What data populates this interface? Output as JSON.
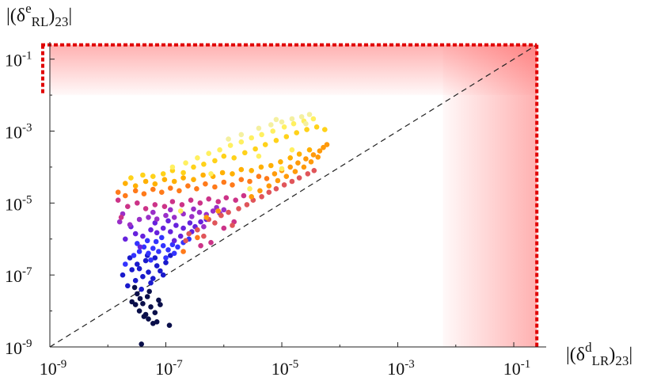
{
  "chart_data": {
    "type": "scatter",
    "title": "",
    "xlabel": "|(δ^d_LR)_23|",
    "ylabel": "|(δ^e_RL)_23|",
    "xscale": "log",
    "yscale": "log",
    "xlim": [
      1e-09,
      0.3
    ],
    "ylim": [
      1e-09,
      0.3
    ],
    "x_ticks": [
      {
        "value": 1e-09,
        "base": "10",
        "exp": "-9"
      },
      {
        "value": 1e-07,
        "base": "10",
        "exp": "-7"
      },
      {
        "value": 1e-05,
        "base": "10",
        "exp": "-5"
      },
      {
        "value": 0.001,
        "base": "10",
        "exp": "-3"
      },
      {
        "value": 0.1,
        "base": "10",
        "exp": "-1"
      }
    ],
    "y_ticks": [
      {
        "value": 1e-09,
        "base": "10",
        "exp": "-9"
      },
      {
        "value": 1e-07,
        "base": "10",
        "exp": "-7"
      },
      {
        "value": 1e-05,
        "base": "10",
        "exp": "-5"
      },
      {
        "value": 0.001,
        "base": "10",
        "exp": "-3"
      },
      {
        "value": 0.1,
        "base": "10",
        "exp": "-1"
      }
    ],
    "reference_line": {
      "style": "dashed",
      "color": "#222222",
      "points": [
        [
          1e-09,
          1e-09
        ],
        [
          0.25,
          0.25
        ]
      ]
    },
    "excluded_regions": [
      {
        "color": "#ff3b3b",
        "x": [
          1e-09,
          0.25
        ],
        "y": [
          0.01,
          0.25
        ]
      },
      {
        "color": "#ff3b3b",
        "x": [
          0.006,
          0.25
        ],
        "y": [
          1e-09,
          0.25
        ]
      }
    ],
    "exclusion_boundary": {
      "color": "#e00000",
      "style": "dotted",
      "x_max": 0.25,
      "y_max": 0.25
    },
    "colors": [
      "#0a0f4a",
      "#1a1acc",
      "#3333ff",
      "#6622dd",
      "#9a2fc8",
      "#cc3388",
      "#e0555a",
      "#ff7a1a",
      "#ff9a0a",
      "#ffb000",
      "#ffd21a",
      "#fff060",
      "#f4f0a0"
    ],
    "series": [
      {
        "color": "#0a0f4a",
        "points": [
          [
            3e-08,
            1.5e-08
          ],
          [
            3.5e-08,
            1e-08
          ],
          [
            3.8e-08,
            1.2e-09
          ],
          [
            4.5e-08,
            8e-09
          ],
          [
            5.5e-08,
            1.3e-08
          ],
          [
            6e-08,
            4.5e-09
          ],
          [
            2.6e-08,
            1.8e-08
          ],
          [
            7e-08,
            5e-09
          ],
          [
            4e-08,
            1.6e-08
          ],
          [
            1.15e-07,
            4e-09
          ],
          [
            5e-08,
            6e-09
          ],
          [
            3.2e-08,
            3e-08
          ],
          [
            4.8e-08,
            2.5e-08
          ],
          [
            6.5e-08,
            9e-09
          ],
          [
            3.6e-08,
            2.2e-08
          ],
          [
            5.2e-08,
            3.5e-08
          ],
          [
            7.5e-08,
            2e-08
          ],
          [
            2.9e-08,
            4.5e-08
          ],
          [
            4.2e-08,
            7e-09
          ],
          [
            8e-08,
            1.5e-08
          ]
        ]
      },
      {
        "color": "#1a1acc",
        "points": [
          [
            1.8e-08,
            1e-07
          ],
          [
            2.2e-08,
            5e-08
          ],
          [
            3e-08,
            7e-08
          ],
          [
            3.5e-08,
            1.5e-07
          ],
          [
            4e-08,
            9e-08
          ],
          [
            5e-08,
            1.2e-07
          ],
          [
            6e-08,
            8e-08
          ],
          [
            7e-08,
            1.8e-07
          ],
          [
            4.5e-08,
            2.5e-07
          ],
          [
            3.2e-08,
            2e-07
          ],
          [
            5.5e-08,
            6e-08
          ],
          [
            8e-08,
            1.3e-07
          ],
          [
            2.6e-08,
            1.4e-07
          ],
          [
            6.5e-08,
            3e-07
          ],
          [
            1e-07,
            2.2e-07
          ],
          [
            9e-08,
            1e-07
          ],
          [
            3.8e-08,
            4e-08
          ],
          [
            4.8e-08,
            3.5e-07
          ],
          [
            2.4e-08,
            3e-07
          ],
          [
            1.2e-07,
            3.5e-07
          ]
        ]
      },
      {
        "color": "#3333ff",
        "points": [
          [
            2e-08,
            2e-07
          ],
          [
            2.8e-08,
            3.5e-07
          ],
          [
            3.5e-08,
            4.5e-07
          ],
          [
            4.2e-08,
            6e-07
          ],
          [
            5e-08,
            4e-07
          ],
          [
            6e-08,
            5.5e-07
          ],
          [
            7.5e-08,
            4.5e-07
          ],
          [
            9e-08,
            6.5e-07
          ],
          [
            1.1e-07,
            5e-07
          ],
          [
            1.3e-07,
            7e-07
          ],
          [
            1.6e-07,
            6e-07
          ],
          [
            2e-07,
            8e-07
          ],
          [
            3.2e-08,
            7.5e-07
          ],
          [
            4.8e-08,
            9e-07
          ],
          [
            6.8e-08,
            8.5e-07
          ],
          [
            8.5e-08,
            1.1e-06
          ],
          [
            1e-07,
            3e-07
          ],
          [
            1.4e-07,
            4e-07
          ],
          [
            5.5e-08,
            2.6e-07
          ],
          [
            2.5e-07,
            1e-06
          ]
        ]
      },
      {
        "color": "#6622dd",
        "points": [
          [
            2e-08,
            1e-06
          ],
          [
            3e-08,
            1.4e-06
          ],
          [
            4e-08,
            1.2e-06
          ],
          [
            5.5e-08,
            1.8e-06
          ],
          [
            7e-08,
            1.5e-06
          ],
          [
            9e-08,
            2e-06
          ],
          [
            1.2e-07,
            1.6e-06
          ],
          [
            1.5e-07,
            2.4e-06
          ],
          [
            2e-07,
            2e-06
          ],
          [
            2.6e-07,
            2.8e-06
          ],
          [
            3.2e-07,
            2.2e-06
          ],
          [
            4e-07,
            3e-06
          ],
          [
            2.5e-08,
            2.2e-06
          ],
          [
            1.8e-07,
            1.2e-06
          ],
          [
            6.5e-08,
            2.8e-06
          ],
          [
            1.1e-07,
            3.2e-06
          ],
          [
            2.8e-07,
            1.6e-06
          ],
          [
            3.6e-08,
            6e-07
          ],
          [
            5e-07,
            3.5e-06
          ],
          [
            1.4e-07,
            9e-07
          ]
        ]
      },
      {
        "color": "#9a2fc8",
        "points": [
          [
            1.6e-08,
            3e-06
          ],
          [
            2.4e-08,
            2.5e-06
          ],
          [
            3.5e-08,
            3.5e-06
          ],
          [
            5e-08,
            4e-06
          ],
          [
            7e-08,
            3.6e-06
          ],
          [
            1e-07,
            4.5e-06
          ],
          [
            1.4e-07,
            4e-06
          ],
          [
            2e-07,
            5e-06
          ],
          [
            2.8e-07,
            4.2e-06
          ],
          [
            3.8e-07,
            5.5e-06
          ],
          [
            5e-07,
            4.8e-06
          ],
          [
            6.5e-07,
            6e-06
          ],
          [
            8.5e-07,
            5.2e-06
          ],
          [
            4.5e-07,
            2.2e-06
          ],
          [
            6e-08,
            5.5e-06
          ],
          [
            1.2e-07,
            6.5e-06
          ],
          [
            1.8e-08,
            5e-06
          ],
          [
            3e-07,
            6.8e-06
          ],
          [
            7.5e-07,
            7.5e-06
          ],
          [
            1e-06,
            6.5e-06
          ]
        ]
      },
      {
        "color": "#cc3388",
        "points": [
          [
            1.5e-08,
            1.2e-05
          ],
          [
            2.2e-08,
            8e-06
          ],
          [
            3.2e-08,
            1e-05
          ],
          [
            4.5e-08,
            7e-06
          ],
          [
            6.5e-08,
            9e-06
          ],
          [
            9.5e-08,
            8e-06
          ],
          [
            1.3e-07,
            1.1e-05
          ],
          [
            1.9e-07,
            9e-06
          ],
          [
            2.7e-07,
            1.2e-05
          ],
          [
            3.9e-07,
            1e-05
          ],
          [
            5.5e-07,
            1.3e-05
          ],
          [
            8e-07,
            1.1e-05
          ],
          [
            1.1e-06,
            1.4e-05
          ],
          [
            1.6e-06,
            1.2e-05
          ],
          [
            2.2e-06,
            1.6e-05
          ],
          [
            4e-07,
            6.5e-07
          ],
          [
            6e-07,
            8e-07
          ],
          [
            1e-06,
            2e-06
          ],
          [
            1.5e-06,
            3e-06
          ],
          [
            1.7e-08,
            4e-06
          ]
        ]
      },
      {
        "color": "#e0555a",
        "points": [
          [
            2.5e-07,
            1.4e-06
          ],
          [
            3.5e-07,
            1.8e-06
          ],
          [
            5.5e-07,
            3.5e-06
          ],
          [
            7e-07,
            2.8e-06
          ],
          [
            9e-07,
            4.5e-06
          ],
          [
            1.2e-06,
            5.5e-06
          ],
          [
            1.8e-06,
            7e-06
          ],
          [
            2.5e-06,
            9e-06
          ],
          [
            3.2e-06,
            1.2e-05
          ],
          [
            4.5e-06,
            1.5e-05
          ],
          [
            6e-06,
            2e-05
          ],
          [
            8e-06,
            2.5e-05
          ],
          [
            1.1e-05,
            3.2e-05
          ],
          [
            1.5e-05,
            4e-05
          ],
          [
            2e-05,
            5e-05
          ],
          [
            2.8e-05,
            6.5e-05
          ],
          [
            3.6e-05,
            8e-05
          ],
          [
            2.2e-07,
            9e-07
          ],
          [
            4.5e-07,
            1.2e-06
          ],
          [
            1.4e-06,
            2.4e-06
          ]
        ]
      },
      {
        "color": "#ff7a1a",
        "points": [
          [
            1.5e-08,
            2e-05
          ],
          [
            2e-08,
            1.6e-05
          ],
          [
            3e-08,
            2.2e-05
          ],
          [
            4.2e-08,
            1.8e-05
          ],
          [
            6e-08,
            2.4e-05
          ],
          [
            8.5e-08,
            2e-05
          ],
          [
            1.2e-07,
            2.6e-05
          ],
          [
            1.7e-07,
            2.2e-05
          ],
          [
            2.4e-07,
            3e-05
          ],
          [
            3.4e-07,
            2.5e-05
          ],
          [
            4.8e-07,
            3.4e-05
          ],
          [
            7e-07,
            2.8e-05
          ],
          [
            1e-06,
            3.8e-05
          ],
          [
            1.4e-06,
            3.2e-05
          ],
          [
            2e-06,
            4.5e-05
          ],
          [
            2.8e-06,
            4e-05
          ],
          [
            4e-06,
            5.5e-05
          ],
          [
            5.5e-06,
            4.8e-05
          ],
          [
            3.5e-07,
            1.1e-06
          ],
          [
            2e-07,
            4.5e-07
          ]
        ]
      },
      {
        "color": "#ff9a0a",
        "points": [
          [
            7.5e-06,
            6.5e-05
          ],
          [
            1e-05,
            8e-05
          ],
          [
            1.4e-05,
            0.0001
          ],
          [
            1.9e-05,
            0.00013
          ],
          [
            2.6e-05,
            0.00017
          ],
          [
            3.5e-05,
            0.00022
          ],
          [
            4.5e-05,
            0.00028
          ],
          [
            5.2e-05,
            0.00035
          ],
          [
            6e-05,
            0.00042
          ],
          [
            3e-06,
            1.5e-05
          ],
          [
            4.2e-06,
            2.2e-05
          ],
          [
            6e-06,
            3e-05
          ],
          [
            8.5e-06,
            4.2e-05
          ],
          [
            1.2e-05,
            5.5e-05
          ],
          [
            1.7e-05,
            7.5e-05
          ],
          [
            2.4e-05,
            0.0001
          ],
          [
            3.2e-05,
            0.00014
          ],
          [
            4.2e-05,
            0.00019
          ],
          [
            5e-07,
            4e-06
          ],
          [
            8e-07,
            6e-06
          ]
        ]
      },
      {
        "color": "#ffb000",
        "points": [
          [
            2e-08,
            3.5e-05
          ],
          [
            3e-08,
            3e-05
          ],
          [
            4.5e-08,
            4e-05
          ],
          [
            6.5e-08,
            3.4e-05
          ],
          [
            9.5e-08,
            4.5e-05
          ],
          [
            1.4e-07,
            4e-05
          ],
          [
            2e-07,
            5e-05
          ],
          [
            3e-07,
            4.5e-05
          ],
          [
            4.4e-07,
            6e-05
          ],
          [
            6.5e-07,
            5.5e-05
          ],
          [
            9.5e-07,
            7e-05
          ],
          [
            1.4e-06,
            6.5e-05
          ],
          [
            2e-06,
            8.5e-05
          ],
          [
            3e-06,
            8e-05
          ],
          [
            4.4e-06,
            0.0001
          ],
          [
            6.5e-06,
            0.00011
          ],
          [
            9.5e-06,
            0.00014
          ],
          [
            1.4e-05,
            0.00018
          ],
          [
            2e-05,
            0.00023
          ],
          [
            3e-05,
            0.0003
          ]
        ]
      },
      {
        "color": "#ffd21a",
        "points": [
          [
            2.5e-08,
            5e-05
          ],
          [
            4e-08,
            6e-05
          ],
          [
            6e-08,
            5.5e-05
          ],
          [
            9e-08,
            6.5e-05
          ],
          [
            1.3e-07,
            8e-05
          ],
          [
            2e-07,
            7e-05
          ],
          [
            3e-07,
            0.0001
          ],
          [
            4.5e-07,
            0.00012
          ],
          [
            7e-07,
            0.00015
          ],
          [
            1e-06,
            0.0002
          ],
          [
            1.5e-06,
            0.00018
          ],
          [
            2.3e-06,
            0.00025
          ],
          [
            3.5e-06,
            0.00032
          ],
          [
            5.2e-06,
            0.00042
          ],
          [
            8e-06,
            0.00055
          ],
          [
            1.2e-05,
            0.0007
          ],
          [
            1.8e-05,
            0.0009
          ],
          [
            2.7e-05,
            0.0011
          ],
          [
            4e-05,
            0.0013
          ],
          [
            5.5e-05,
            0.0011
          ]
        ]
      },
      {
        "color": "#fff060",
        "points": [
          [
            1.3e-07,
            0.0001
          ],
          [
            2.2e-07,
            0.00013
          ],
          [
            3.5e-07,
            0.00018
          ],
          [
            5.5e-07,
            0.00024
          ],
          [
            8.5e-07,
            0.0003
          ],
          [
            1.3e-06,
            0.0004
          ],
          [
            2e-06,
            0.0005
          ],
          [
            3e-06,
            0.00065
          ],
          [
            4.5e-06,
            0.0008
          ],
          [
            7e-06,
            0.001
          ],
          [
            1.1e-05,
            0.0013
          ],
          [
            1.6e-05,
            0.0016
          ],
          [
            2.4e-05,
            0.0019
          ],
          [
            3.5e-05,
            0.0022
          ],
          [
            2.8e-06,
            2.5e-05
          ],
          [
            1e-05,
            9e-05
          ],
          [
            1.8e-07,
            6e-06
          ],
          [
            4e-06,
            0.0002
          ],
          [
            6e-07,
            6.5e-05
          ],
          [
            1.5e-05,
            0.0003
          ]
        ]
      },
      {
        "color": "#f4f0a0",
        "points": [
          [
            2e-06,
            0.0008
          ],
          [
            4e-06,
            0.0012
          ],
          [
            6.5e-06,
            0.0015
          ],
          [
            1e-05,
            0.0018
          ],
          [
            1.5e-05,
            0.0022
          ],
          [
            2.2e-05,
            0.0025
          ],
          [
            3e-05,
            0.0029
          ],
          [
            1.2e-06,
            0.0006
          ],
          [
            8e-06,
            0.0021
          ],
          [
            2.6e-05,
            0.0016
          ]
        ]
      }
    ]
  }
}
